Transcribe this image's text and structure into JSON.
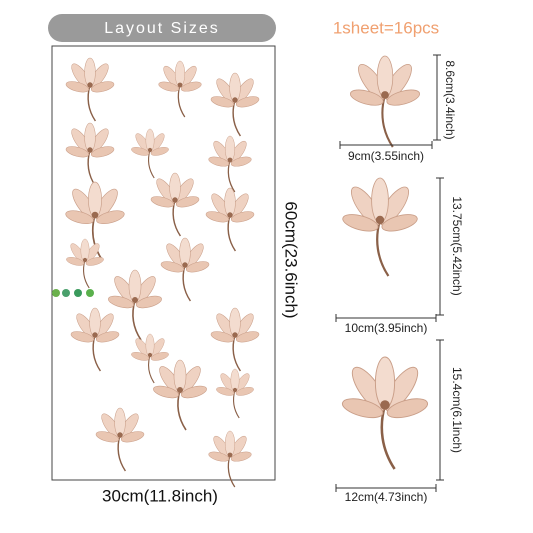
{
  "header": {
    "title": "Layout Sizes",
    "count": "1sheet=16pcs"
  },
  "sheet": {
    "height": "60cm(23.6inch)",
    "width": "30cm(11.8inch)"
  },
  "samples": [
    {
      "height": "8.6cm(3.4inch)",
      "width": "9cm(3.55inch)"
    },
    {
      "height": "13.75cm(5.42inch)",
      "width": "10cm(3.95inch)"
    },
    {
      "height": "15.4cm(6.1inch)",
      "width": "12cm(4.73inch)"
    }
  ]
}
